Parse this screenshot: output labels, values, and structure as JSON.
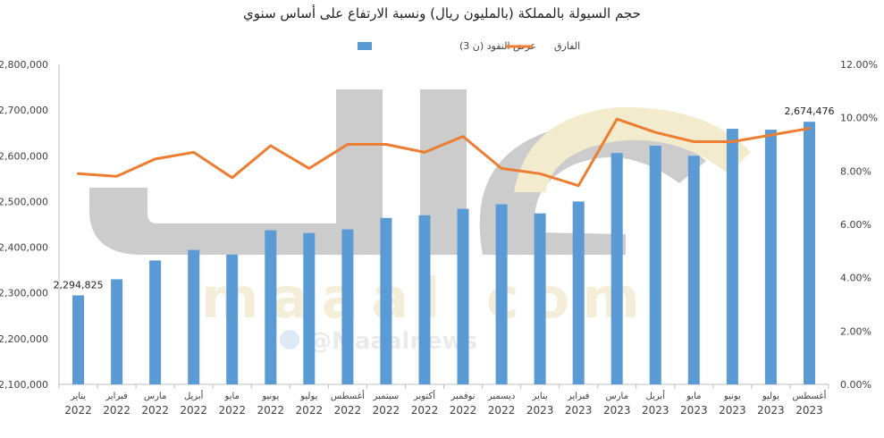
{
  "chart_data": {
    "type": "bar+line",
    "title": "حجم السيولة بالمملكة (بالمليون ريال) ونسبة الارتفاع على أساس سنوي",
    "categories": [
      [
        "يناير",
        "2022"
      ],
      [
        "فبراير",
        "2022"
      ],
      [
        "مارس",
        "2022"
      ],
      [
        "أبريل",
        "2022"
      ],
      [
        "مايو",
        "2022"
      ],
      [
        "يونيو",
        "2022"
      ],
      [
        "يوليو",
        "2022"
      ],
      [
        "أغسطس",
        "2022"
      ],
      [
        "سبتمبر",
        "2022"
      ],
      [
        "أكتوبر",
        "2022"
      ],
      [
        "نوفمبر",
        "2022"
      ],
      [
        "ديسمبر",
        "2022"
      ],
      [
        "يناير",
        "2023"
      ],
      [
        "فبراير",
        "2023"
      ],
      [
        "مارس",
        "2023"
      ],
      [
        "أبريل",
        "2023"
      ],
      [
        "مايو",
        "2023"
      ],
      [
        "يونيو",
        "2023"
      ],
      [
        "يوليو",
        "2023"
      ],
      [
        "أغسطس",
        "2023"
      ]
    ],
    "series": [
      {
        "name": "عرض النقود (ن 3)",
        "kind": "bar",
        "axis": "left",
        "color": "#5b9bd5",
        "values": [
          2294825,
          2330000,
          2371000,
          2394000,
          2384000,
          2437000,
          2431000,
          2439000,
          2464000,
          2470000,
          2484000,
          2494000,
          2474000,
          2500000,
          2606000,
          2622000,
          2600000,
          2659000,
          2657000,
          2674476
        ]
      },
      {
        "name": "الفارق",
        "kind": "line",
        "axis": "right",
        "color": "#ed7d31",
        "values": [
          7.9,
          7.8,
          8.45,
          8.7,
          7.75,
          8.95,
          8.1,
          9.0,
          9.0,
          8.7,
          9.3,
          8.1,
          7.9,
          7.45,
          9.95,
          9.45,
          9.1,
          9.1,
          9.35,
          9.6
        ]
      }
    ],
    "y_left": {
      "ylim": [
        2100000,
        2800000
      ],
      "ticks": [
        "2,100,000",
        "2,200,000",
        "2,300,000",
        "2,400,000",
        "2,500,000",
        "2,600,000",
        "2,700,000",
        "2,800,000"
      ],
      "tick_values": [
        2100000,
        2200000,
        2300000,
        2400000,
        2500000,
        2600000,
        2700000,
        2800000
      ]
    },
    "y_right": {
      "ylim": [
        0,
        12
      ],
      "ticks": [
        "0.00%",
        "2.00%",
        "4.00%",
        "6.00%",
        "8.00%",
        "10.00%",
        "12.00%"
      ],
      "tick_values": [
        0,
        2,
        4,
        6,
        8,
        10,
        12
      ]
    },
    "data_labels": [
      {
        "index": 0,
        "text": "2,294,825"
      },
      {
        "index": 19,
        "text": "2,674,476"
      }
    ],
    "legend_position": "top",
    "grid": false
  },
  "watermark": {
    "site": "maaal.com",
    "handle": "@Maaalnews"
  }
}
